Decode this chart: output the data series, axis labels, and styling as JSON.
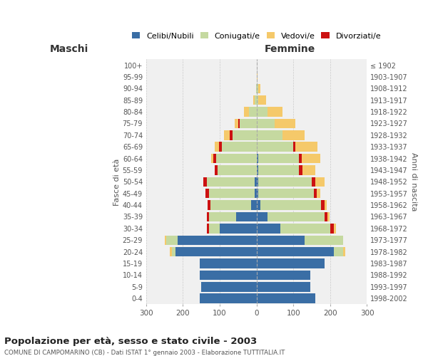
{
  "age_groups": [
    "0-4",
    "5-9",
    "10-14",
    "15-19",
    "20-24",
    "25-29",
    "30-34",
    "35-39",
    "40-44",
    "45-49",
    "50-54",
    "55-59",
    "60-64",
    "65-69",
    "70-74",
    "75-79",
    "80-84",
    "85-89",
    "90-94",
    "95-99",
    "100+"
  ],
  "birth_years": [
    "1998-2002",
    "1993-1997",
    "1988-1992",
    "1983-1987",
    "1978-1982",
    "1973-1977",
    "1968-1972",
    "1963-1967",
    "1958-1962",
    "1953-1957",
    "1948-1952",
    "1943-1947",
    "1938-1942",
    "1933-1937",
    "1928-1932",
    "1923-1927",
    "1918-1922",
    "1913-1917",
    "1908-1912",
    "1903-1907",
    "≤ 1902"
  ],
  "males": {
    "celibi": [
      155,
      150,
      155,
      155,
      220,
      215,
      100,
      55,
      15,
      5,
      5,
      0,
      0,
      0,
      0,
      0,
      0,
      0,
      0,
      0,
      0
    ],
    "coniugati": [
      0,
      0,
      0,
      0,
      10,
      30,
      30,
      75,
      110,
      125,
      130,
      105,
      110,
      95,
      65,
      45,
      20,
      5,
      2,
      0,
      0
    ],
    "vedovi": [
      0,
      0,
      0,
      0,
      5,
      5,
      0,
      0,
      0,
      0,
      0,
      0,
      5,
      10,
      15,
      10,
      15,
      5,
      0,
      0,
      0
    ],
    "divorziati": [
      0,
      0,
      0,
      0,
      0,
      0,
      5,
      5,
      8,
      8,
      10,
      8,
      8,
      8,
      8,
      5,
      0,
      0,
      0,
      0,
      0
    ]
  },
  "females": {
    "nubili": [
      160,
      145,
      145,
      185,
      210,
      130,
      65,
      30,
      10,
      5,
      5,
      5,
      5,
      0,
      0,
      0,
      0,
      0,
      0,
      0,
      0
    ],
    "coniugate": [
      0,
      0,
      0,
      0,
      25,
      105,
      135,
      155,
      165,
      150,
      145,
      110,
      110,
      100,
      70,
      50,
      30,
      5,
      5,
      0,
      0
    ],
    "vedove": [
      0,
      0,
      0,
      0,
      5,
      0,
      5,
      5,
      5,
      10,
      25,
      35,
      50,
      60,
      60,
      55,
      40,
      20,
      5,
      2,
      0
    ],
    "divorziate": [
      0,
      0,
      0,
      0,
      0,
      0,
      10,
      8,
      10,
      8,
      10,
      10,
      8,
      5,
      0,
      0,
      0,
      0,
      0,
      0,
      0
    ]
  },
  "colors": {
    "celibi_nubili": "#3a6ea5",
    "coniugati_e": "#c5d9a0",
    "vedovi_e": "#f5c96a",
    "divorziati_e": "#cc1111"
  },
  "xlim": 300,
  "title": "Popolazione per età, sesso e stato civile - 2003",
  "subtitle": "COMUNE DI CAMPOMARINO (CB) - Dati ISTAT 1° gennaio 2003 - Elaborazione TUTTITALIA.IT",
  "xlabel_left": "Maschi",
  "xlabel_right": "Femmine",
  "ylabel_left": "Fasce di età",
  "ylabel_right": "Anni di nascita",
  "legend_labels": [
    "Celibi/Nubili",
    "Coniugati/e",
    "Vedovi/e",
    "Divorziati/e"
  ],
  "bg_color": "#ffffff",
  "plot_bg": "#f0f0f0",
  "grid_color": "#cccccc"
}
